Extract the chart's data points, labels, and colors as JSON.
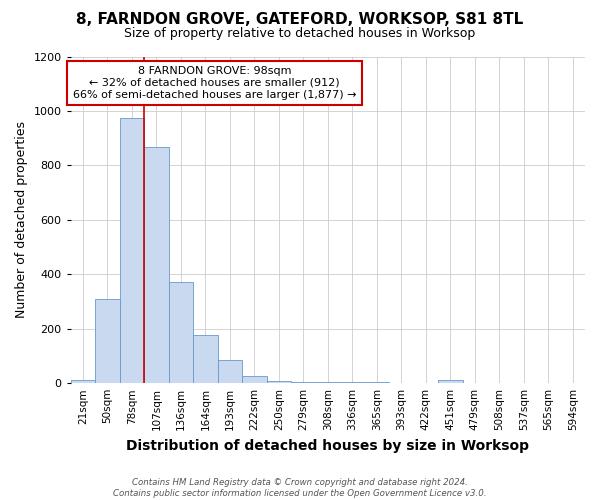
{
  "title1": "8, FARNDON GROVE, GATEFORD, WORKSOP, S81 8TL",
  "title2": "Size of property relative to detached houses in Worksop",
  "xlabel": "Distribution of detached houses by size in Worksop",
  "ylabel": "Number of detached properties",
  "footnote1": "Contains HM Land Registry data © Crown copyright and database right 2024.",
  "footnote2": "Contains public sector information licensed under the Open Government Licence v3.0.",
  "annotation_line1": "8 FARNDON GROVE: 98sqm",
  "annotation_line2": "← 32% of detached houses are smaller (912)",
  "annotation_line3": "66% of semi-detached houses are larger (1,877) →",
  "bin_labels": [
    "21sqm",
    "50sqm",
    "78sqm",
    "107sqm",
    "136sqm",
    "164sqm",
    "193sqm",
    "222sqm",
    "250sqm",
    "279sqm",
    "308sqm",
    "336sqm",
    "365sqm",
    "393sqm",
    "422sqm",
    "451sqm",
    "479sqm",
    "508sqm",
    "537sqm",
    "565sqm",
    "594sqm"
  ],
  "bar_heights": [
    10,
    310,
    975,
    868,
    370,
    178,
    85,
    25,
    8,
    3,
    3,
    3,
    5,
    0,
    0,
    10,
    0,
    0,
    0,
    0,
    0
  ],
  "bar_color": "#c8d9f0",
  "bar_edge_color": "#6699cc",
  "grid_color": "#cccccc",
  "vline_x": 3.0,
  "vline_color": "#cc0000",
  "annotation_box_color": "#cc0000",
  "ylim": [
    0,
    1200
  ],
  "yticks": [
    0,
    200,
    400,
    600,
    800,
    1000,
    1200
  ],
  "bg_color": "#ffffff",
  "title1_fontsize": 11,
  "title2_fontsize": 9,
  "xlabel_fontsize": 10,
  "ylabel_fontsize": 9
}
